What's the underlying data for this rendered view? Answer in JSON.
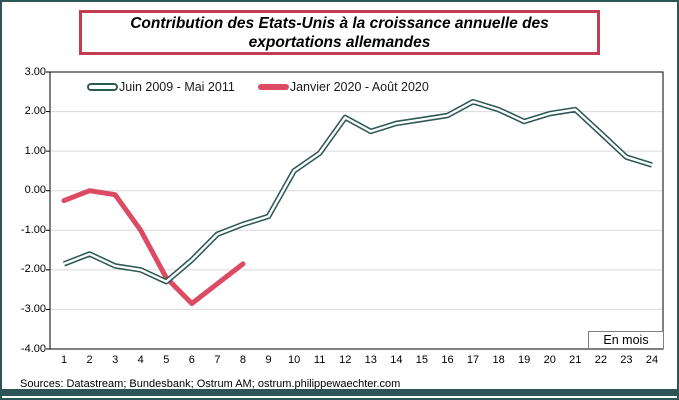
{
  "frame": {
    "border_color": "#2E5555",
    "footer_bar_color": "#2E5555"
  },
  "title": {
    "text": "Contribution des Etats-Unis à la croissance annuelle des exportations allemandes",
    "border_color": "#C53B54"
  },
  "sources": "Sources: Datastream; Bundesbank; Ostrum AM; ostrum.philippewaechter.com",
  "chart_data": {
    "type": "line",
    "title": "Contribution des Etats-Unis à la croissance annuelle des exportations allemandes",
    "xlabel": "En mois",
    "ylabel": "",
    "x": [
      1,
      2,
      3,
      4,
      5,
      6,
      7,
      8,
      9,
      10,
      11,
      12,
      13,
      14,
      15,
      16,
      17,
      18,
      19,
      20,
      21,
      22,
      23,
      24
    ],
    "ylim": [
      -4,
      3
    ],
    "yticks": [
      "3.00",
      "2.00",
      "1.00",
      "0.00",
      "-1.00",
      "-2.00",
      "-3.00",
      "-4.00"
    ],
    "ytick_values": [
      3,
      2,
      1,
      0,
      -1,
      -2,
      -3,
      -4
    ],
    "grid": true,
    "gridline_color": "#D9D9D9",
    "plot_border_color": "#000000",
    "legend_position": "top-inside",
    "series": [
      {
        "name": "Juin 2009 - Mai 2011",
        "color": "#2E5A55",
        "line_style": "outlined-white-core",
        "values": [
          -1.85,
          -1.6,
          -1.9,
          -2.0,
          -2.3,
          -1.75,
          -1.1,
          -0.85,
          -0.65,
          0.5,
          0.95,
          1.85,
          1.5,
          1.7,
          1.8,
          1.9,
          2.25,
          2.05,
          1.75,
          1.95,
          2.05,
          1.45,
          0.85,
          0.65
        ]
      },
      {
        "name": "Janvier 2020 - Août 2020",
        "color": "#DC4B63",
        "line_style": "solid",
        "values": [
          -0.25,
          0.0,
          -0.1,
          -1.0,
          -2.2,
          -2.85,
          -2.35,
          -1.85
        ]
      }
    ]
  }
}
